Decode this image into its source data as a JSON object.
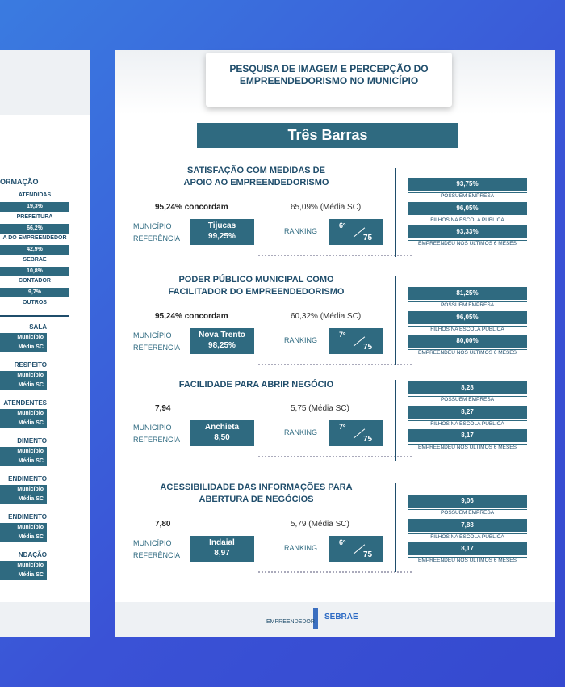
{
  "left_page": {
    "heading": "ORMAÇÃO",
    "bars": [
      {
        "label": "ATENDIDAS",
        "value": "19,3%"
      },
      {
        "label": "PREFEITURA",
        "value": "66,2%"
      },
      {
        "label": "A DO EMPREENDEDOR",
        "value": "42,9%"
      },
      {
        "label": "SEBRAE",
        "value": "10,8%"
      },
      {
        "label": "CONTADOR",
        "value": "9,7%"
      }
    ],
    "last_label": "OUTROS",
    "groups": [
      {
        "title": "SALA",
        "rows": [
          "Município",
          "Média SC"
        ]
      },
      {
        "title": "RESPEITO",
        "rows": [
          "Município",
          "Média SC"
        ]
      },
      {
        "title": "ATENDENTES",
        "rows": [
          "Município",
          "Média SC"
        ]
      },
      {
        "title": "DIMENTO",
        "rows": [
          "Município",
          "Média SC"
        ]
      },
      {
        "title": "ENDIMENTO",
        "rows": [
          "Município",
          "Média SC"
        ]
      },
      {
        "title": "ENDIMENTO",
        "rows": [
          "Município",
          "Média SC"
        ]
      },
      {
        "title": "NDAÇÃO",
        "rows": [
          "Município",
          "Média SC"
        ]
      }
    ]
  },
  "header": {
    "title": "PESQUISA DE IMAGEM E PERCEPÇÃO DO EMPREENDEDORISMO NO MUNICÍPIO"
  },
  "city": "Três Barras",
  "sections": [
    {
      "title_lines": [
        "SATISFAÇÃO COM MEDIDAS DE",
        "APOIO AO EMPREENDEDORISMO"
      ],
      "result": "95,24% concordam",
      "average": "65,09% (Média SC)",
      "reference_label": [
        "MUNICÍPIO",
        "REFERÊNCIA"
      ],
      "reference_name": "Tijucas",
      "reference_value": "99,25%",
      "ranking_label": "RANKING",
      "rank": "6º",
      "rank_total": "75",
      "side": [
        {
          "value": "93,75%",
          "label": "POSSUEM EMPRESA"
        },
        {
          "value": "96,05%",
          "label": "FILHOS NA ESCOLA PÚBLICA"
        },
        {
          "value": "93,33%",
          "label": "EMPREENDEU NOS ÚLTIMOS 6 MESES"
        }
      ]
    },
    {
      "title_lines": [
        "PODER PÚBLICO MUNICIPAL COMO",
        "FACILITADOR DO EMPREENDEDORISMO"
      ],
      "result": "95,24%  concordam",
      "average": "60,32% (Média SC)",
      "reference_label": [
        "MUNICÍPIO",
        "REFERÊNCIA"
      ],
      "reference_name": "Nova Trento",
      "reference_value": "98,25%",
      "ranking_label": "RANKING",
      "rank": "7º",
      "rank_total": "75",
      "side": [
        {
          "value": "81,25%",
          "label": "POSSUEM EMPRESA"
        },
        {
          "value": "96,05%",
          "label": "FILHOS NA ESCOLA PÚBLICA"
        },
        {
          "value": "80,00%",
          "label": "EMPREENDEU NOS ÚLTIMOS 6 MESES"
        }
      ]
    },
    {
      "title_lines": [
        "FACILIDADE PARA ABRIR NEGÓCIO"
      ],
      "result": "7,94",
      "average": "5,75 (Média SC)",
      "reference_label": [
        "MUNICÍPIO",
        "REFERÊNCIA"
      ],
      "reference_name": "Anchieta",
      "reference_value": "8,50",
      "ranking_label": "RANKING",
      "rank": "7º",
      "rank_total": "75",
      "side": [
        {
          "value": "8,28",
          "label": "POSSUEM EMPRESA"
        },
        {
          "value": "8,27",
          "label": "FILHOS NA ESCOLA PÚBLICA"
        },
        {
          "value": "8,17",
          "label": "EMPREENDEU NOS ÚLTIMOS 6 MESES"
        }
      ]
    },
    {
      "title_lines": [
        "ACESSIBILIDADE DAS INFORMAÇÕES PARA",
        "ABERTURA DE NEGÓCIOS"
      ],
      "result": "7,80",
      "average": "5,79 (Média SC)",
      "reference_label": [
        "MUNICÍPIO",
        "REFERÊNCIA"
      ],
      "reference_name": "Indaial",
      "reference_value": "8,97",
      "ranking_label": "RANKING",
      "rank": "6º",
      "rank_total": "75",
      "side": [
        {
          "value": "9,06",
          "label": "POSSUEM EMPRESA"
        },
        {
          "value": "7,88",
          "label": "FILHOS NA ESCOLA PÚBLICA"
        },
        {
          "value": "8,17",
          "label": "EMPREENDEU NOS ÚLTIMOS 6 MESES"
        }
      ]
    }
  ],
  "footer": {
    "logo_left": "EMPREENDEDOR",
    "logo_right": "SEBRAE"
  }
}
